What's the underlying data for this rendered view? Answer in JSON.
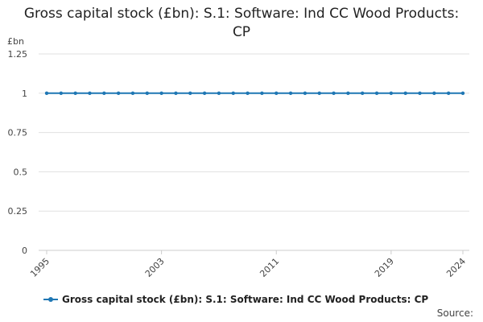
{
  "chart_data": {
    "type": "line",
    "title": "Gross capital stock (£bn): S.1: Software: Ind CC Wood Products: CP",
    "ylabel": "£bn",
    "xlabel": "",
    "ylim": [
      0,
      1.25
    ],
    "yticks": [
      "0",
      "0.25",
      "0.5",
      "0.75",
      "1",
      "1.25"
    ],
    "xlim": [
      1995,
      2024
    ],
    "xticks": [
      "1995",
      "2003",
      "2011",
      "2019",
      "2024"
    ],
    "grid": true,
    "legend_position": "bottom",
    "x": [
      1995,
      1996,
      1997,
      1998,
      1999,
      2000,
      2001,
      2002,
      2003,
      2004,
      2005,
      2006,
      2007,
      2008,
      2009,
      2010,
      2011,
      2012,
      2013,
      2014,
      2015,
      2016,
      2017,
      2018,
      2019,
      2020,
      2021,
      2022,
      2023,
      2024
    ],
    "series": [
      {
        "name": "Gross capital stock (£bn): S.1: Software: Ind CC Wood Products: CP",
        "color": "#1f77b4",
        "values": [
          1,
          1,
          1,
          1,
          1,
          1,
          1,
          1,
          1,
          1,
          1,
          1,
          1,
          1,
          1,
          1,
          1,
          1,
          1,
          1,
          1,
          1,
          1,
          1,
          1,
          1,
          1,
          1,
          1,
          1
        ]
      }
    ]
  },
  "source_label": "Source:"
}
